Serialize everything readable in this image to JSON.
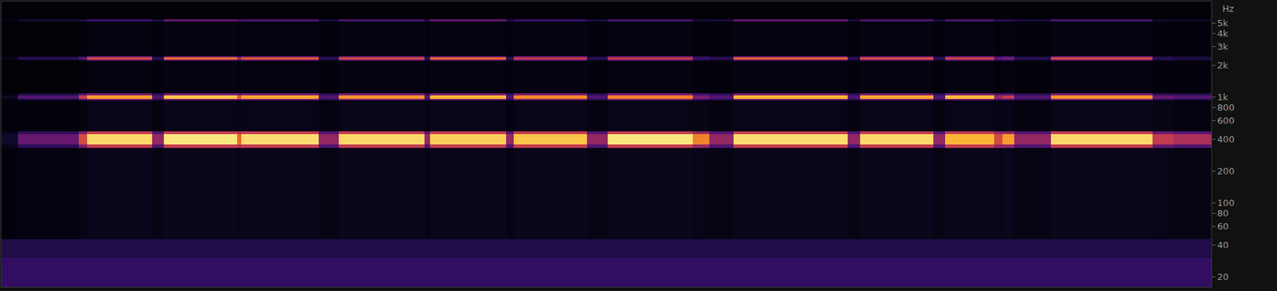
{
  "chart_data": {
    "type": "heatmap",
    "y_unit_label": "Hz",
    "log": "y",
    "tick_labels": "y",
    "grid": false,
    "xlim": [
      0,
      1487
    ],
    "ylim": [
      16,
      8000
    ],
    "yticks": [
      {
        "value": 5000,
        "label": "5k"
      },
      {
        "value": 4000,
        "label": "4k"
      },
      {
        "value": 3000,
        "label": "3k"
      },
      {
        "value": 2000,
        "label": "2k"
      },
      {
        "value": 1000,
        "label": "1k"
      },
      800,
      600,
      400,
      200,
      100,
      80,
      60,
      40,
      20
    ],
    "zlim": [
      0,
      100
    ],
    "x_edges": [
      0,
      20,
      95,
      105,
      185,
      200,
      290,
      295,
      390,
      415,
      520,
      527,
      620,
      630,
      720,
      745,
      850,
      870,
      900,
      1040,
      1055,
      1145,
      1160,
      1220,
      1230,
      1245,
      1290,
      1415,
      1440,
      1487
    ],
    "y_edges": [
      16,
      30,
      45,
      330,
      355,
      445,
      470,
      930,
      965,
      1040,
      1080,
      2200,
      2250,
      2380,
      2450,
      5150,
      5450,
      8000
    ],
    "cells": [
      [
        22,
        22,
        22,
        22,
        22,
        22,
        22,
        22,
        22,
        22,
        22,
        22,
        22,
        22,
        22,
        22,
        22,
        22,
        22,
        22,
        22,
        22,
        22,
        22,
        22,
        22,
        22,
        22,
        22
      ],
      [
        16,
        16,
        16,
        16,
        16,
        16,
        16,
        16,
        16,
        16,
        16,
        16,
        16,
        16,
        16,
        16,
        16,
        16,
        16,
        16,
        16,
        16,
        16,
        16,
        16,
        16,
        16,
        16,
        16
      ],
      [
        2,
        3,
        4,
        6,
        4,
        6,
        5,
        6,
        4,
        6,
        4,
        6,
        4,
        6,
        4,
        6,
        5,
        4,
        6,
        4,
        6,
        4,
        6,
        5,
        6,
        4,
        6,
        5,
        4
      ],
      [
        5,
        20,
        40,
        55,
        30,
        55,
        50,
        55,
        30,
        55,
        30,
        55,
        30,
        55,
        30,
        55,
        45,
        30,
        55,
        30,
        55,
        30,
        55,
        45,
        45,
        30,
        55,
        35,
        30
      ],
      [
        10,
        35,
        60,
        92,
        45,
        95,
        70,
        93,
        45,
        92,
        45,
        90,
        45,
        88,
        45,
        95,
        75,
        45,
        93,
        45,
        92,
        45,
        85,
        60,
        80,
        45,
        92,
        55,
        50
      ],
      [
        5,
        20,
        40,
        55,
        30,
        55,
        50,
        55,
        30,
        55,
        30,
        55,
        30,
        55,
        30,
        55,
        45,
        30,
        55,
        30,
        55,
        30,
        55,
        45,
        45,
        30,
        55,
        35,
        30
      ],
      [
        2,
        2,
        3,
        5,
        3,
        5,
        4,
        5,
        3,
        5,
        3,
        5,
        3,
        5,
        3,
        5,
        4,
        3,
        5,
        3,
        5,
        3,
        5,
        4,
        5,
        3,
        5,
        4,
        3
      ],
      [
        3,
        15,
        30,
        40,
        20,
        40,
        35,
        40,
        20,
        40,
        20,
        40,
        20,
        40,
        20,
        40,
        25,
        20,
        40,
        20,
        40,
        20,
        40,
        30,
        30,
        20,
        40,
        20,
        18
      ],
      [
        8,
        30,
        55,
        80,
        30,
        88,
        65,
        82,
        30,
        78,
        30,
        85,
        30,
        76,
        30,
        74,
        40,
        30,
        85,
        30,
        82,
        30,
        86,
        45,
        55,
        30,
        78,
        35,
        30
      ],
      [
        3,
        15,
        30,
        40,
        20,
        40,
        35,
        40,
        20,
        40,
        20,
        40,
        20,
        40,
        20,
        40,
        25,
        20,
        40,
        20,
        40,
        20,
        40,
        30,
        30,
        20,
        40,
        20,
        18
      ],
      [
        1,
        1,
        2,
        3,
        2,
        3,
        2,
        3,
        2,
        3,
        2,
        3,
        2,
        3,
        2,
        3,
        2,
        2,
        3,
        2,
        3,
        2,
        3,
        2,
        3,
        2,
        3,
        2,
        2
      ],
      [
        2,
        8,
        15,
        35,
        10,
        35,
        25,
        35,
        10,
        35,
        10,
        35,
        10,
        35,
        10,
        35,
        15,
        10,
        35,
        10,
        35,
        10,
        35,
        20,
        25,
        10,
        35,
        12,
        10
      ],
      [
        6,
        20,
        35,
        60,
        20,
        72,
        50,
        66,
        20,
        60,
        20,
        70,
        20,
        55,
        20,
        55,
        25,
        20,
        68,
        20,
        62,
        20,
        58,
        35,
        40,
        20,
        60,
        20,
        15
      ],
      [
        2,
        8,
        15,
        35,
        10,
        35,
        25,
        35,
        10,
        35,
        10,
        35,
        10,
        35,
        10,
        35,
        15,
        10,
        35,
        10,
        35,
        10,
        35,
        20,
        25,
        10,
        35,
        12,
        10
      ],
      [
        1,
        1,
        2,
        3,
        2,
        3,
        2,
        3,
        2,
        3,
        2,
        3,
        2,
        3,
        2,
        3,
        2,
        2,
        3,
        2,
        3,
        2,
        3,
        2,
        3,
        2,
        3,
        2,
        2
      ],
      [
        4,
        12,
        15,
        25,
        15,
        35,
        25,
        30,
        15,
        28,
        15,
        35,
        15,
        25,
        15,
        28,
        12,
        15,
        35,
        15,
        30,
        15,
        30,
        18,
        20,
        15,
        28,
        10,
        8
      ],
      [
        1,
        1,
        1,
        1,
        1,
        1,
        1,
        1,
        1,
        1,
        1,
        1,
        1,
        1,
        1,
        1,
        1,
        1,
        1,
        1,
        1,
        1,
        1,
        1,
        1,
        1,
        1,
        1,
        1
      ]
    ]
  }
}
